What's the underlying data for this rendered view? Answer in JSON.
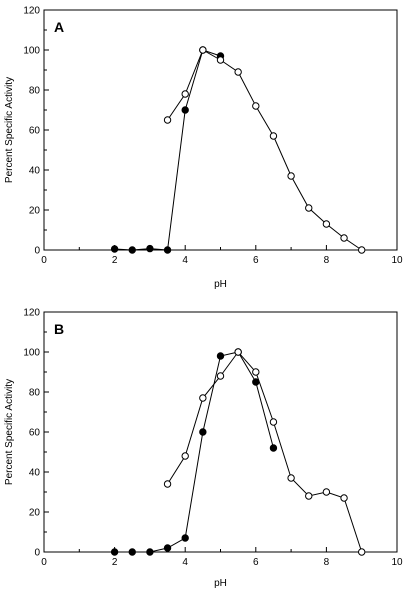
{
  "chart_data": [
    {
      "type": "line",
      "panel_label": "A",
      "xlabel": "pH",
      "ylabel": "Percent Specific Activity",
      "xlim": [
        0,
        10
      ],
      "ylim": [
        0,
        120
      ],
      "xticks": [
        0,
        2,
        4,
        6,
        8,
        10
      ],
      "yticks": [
        0,
        20,
        40,
        60,
        80,
        100,
        120
      ],
      "grid": false,
      "series": [
        {
          "marker": "filled-circle",
          "color": "#000000",
          "x": [
            2.0,
            2.5,
            3.0,
            3.5,
            4.0,
            4.5,
            5.0
          ],
          "y": [
            0.5,
            0,
            0.7,
            0,
            70,
            100,
            97
          ]
        },
        {
          "marker": "open-circle",
          "color": "#000000",
          "x": [
            3.5,
            4.0,
            4.5,
            5.0,
            5.5,
            6.0,
            6.5,
            7.0,
            7.5,
            8.0,
            8.5,
            9.0
          ],
          "y": [
            65,
            78,
            100,
            95,
            89,
            72,
            57,
            37,
            21,
            13,
            6,
            0
          ]
        }
      ]
    },
    {
      "type": "line",
      "panel_label": "B",
      "xlabel": "pH",
      "ylabel": "Percent Specific Activity",
      "xlim": [
        0,
        10
      ],
      "ylim": [
        0,
        120
      ],
      "xticks": [
        0,
        2,
        4,
        6,
        8,
        10
      ],
      "yticks": [
        0,
        20,
        40,
        60,
        80,
        100,
        120
      ],
      "grid": false,
      "series": [
        {
          "marker": "filled-circle",
          "color": "#000000",
          "x": [
            2.0,
            2.5,
            3.0,
            3.5,
            4.0,
            4.5,
            5.0,
            5.5,
            6.0,
            6.5
          ],
          "y": [
            0,
            0,
            0,
            2,
            7,
            60,
            98,
            100,
            85,
            52
          ]
        },
        {
          "marker": "open-circle",
          "color": "#000000",
          "x": [
            3.5,
            4.0,
            4.5,
            5.0,
            5.5,
            6.0,
            6.5,
            7.0,
            7.5,
            8.0,
            8.5,
            9.0
          ],
          "y": [
            34,
            48,
            77,
            88,
            100,
            90,
            65,
            37,
            28,
            30,
            27,
            0
          ]
        }
      ]
    }
  ]
}
